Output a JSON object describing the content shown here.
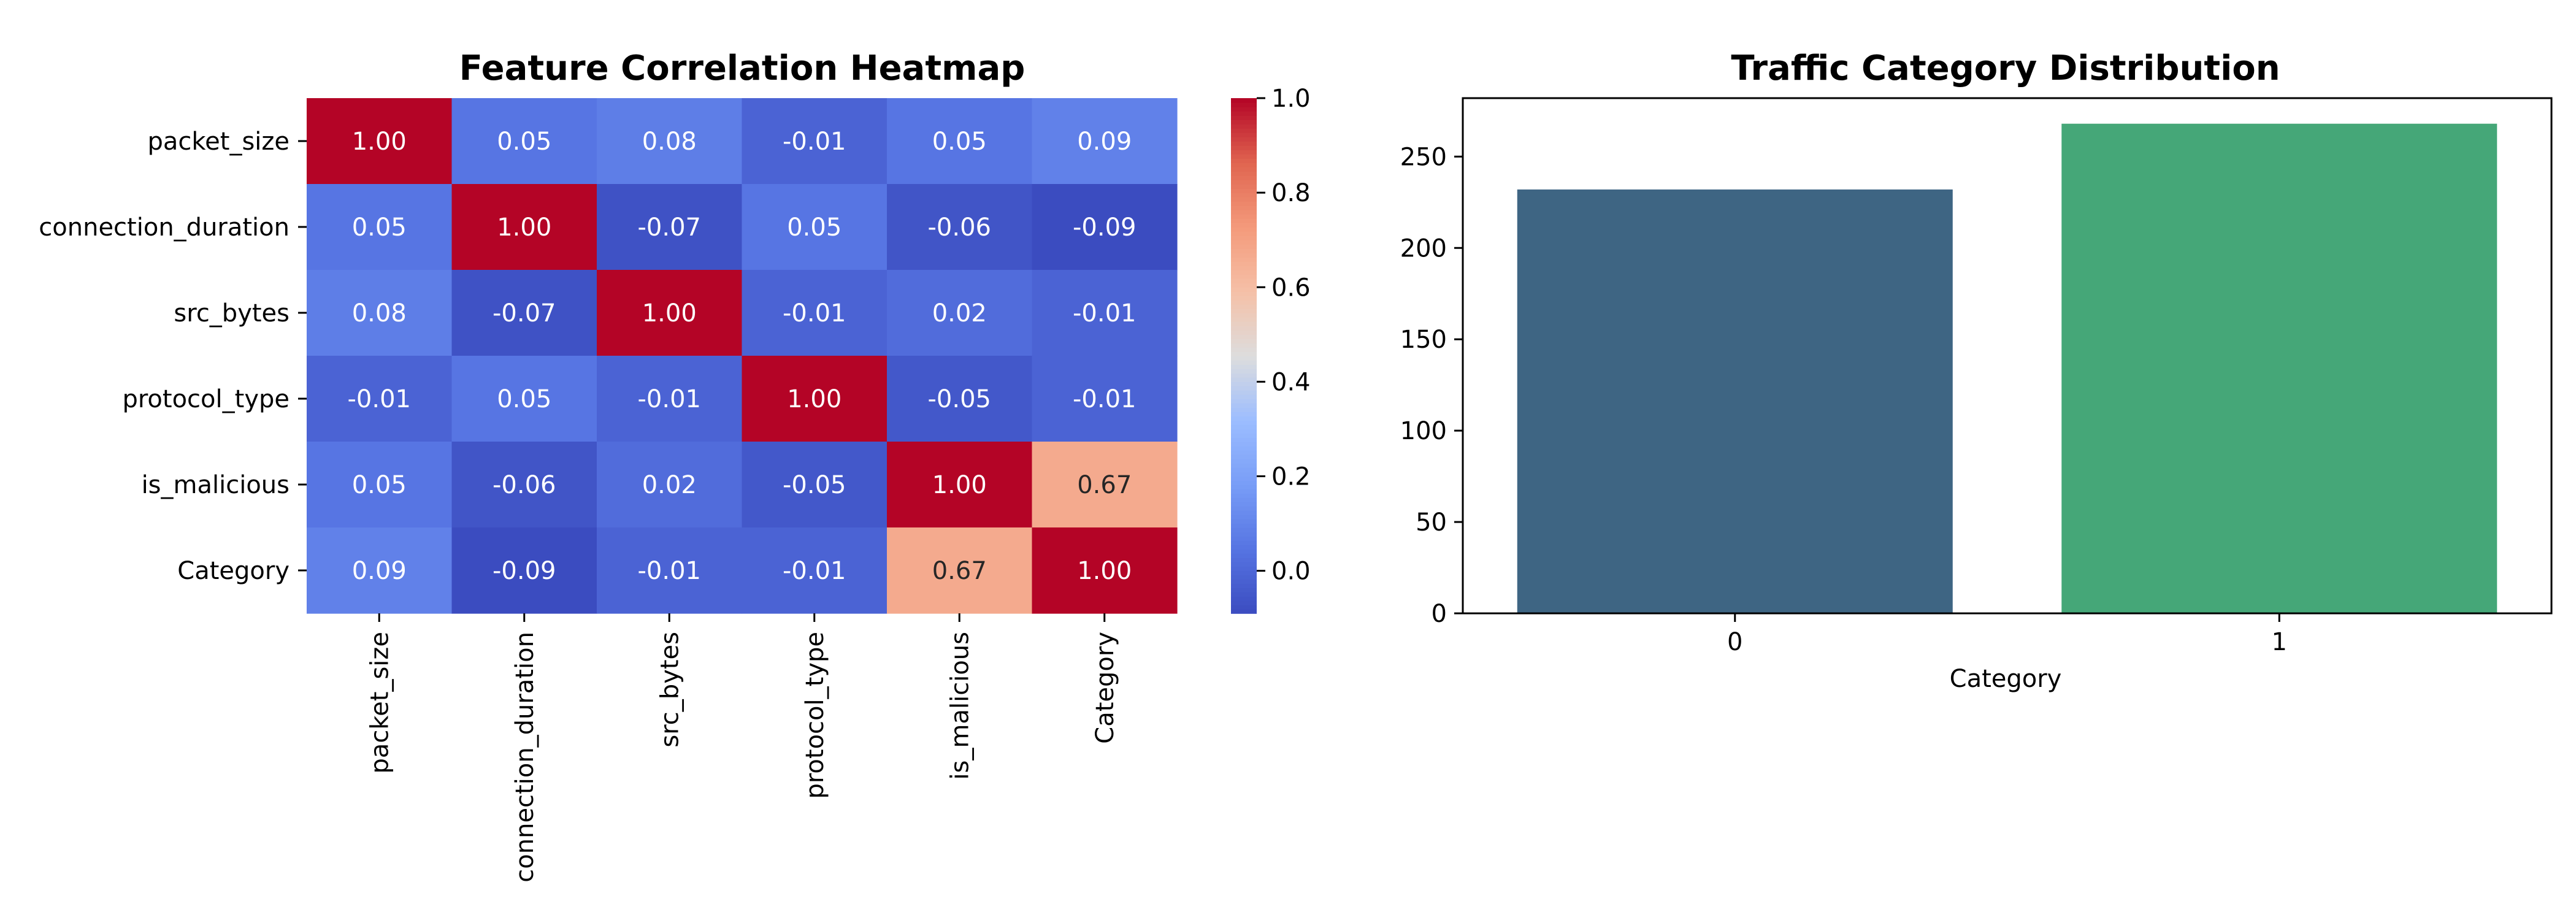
{
  "chart_data": [
    {
      "type": "heatmap",
      "title": "Feature Correlation Heatmap",
      "rows": [
        "packet_size",
        "connection_duration",
        "src_bytes",
        "protocol_type",
        "is_malicious",
        "Category"
      ],
      "columns": [
        "packet_size",
        "connection_duration",
        "src_bytes",
        "protocol_type",
        "is_malicious",
        "Category"
      ],
      "values": [
        [
          1.0,
          0.05,
          0.08,
          -0.01,
          0.05,
          0.09
        ],
        [
          0.05,
          1.0,
          -0.07,
          0.05,
          -0.06,
          -0.09
        ],
        [
          0.08,
          -0.07,
          1.0,
          -0.01,
          0.02,
          -0.01
        ],
        [
          -0.01,
          0.05,
          -0.01,
          1.0,
          -0.05,
          -0.01
        ],
        [
          0.05,
          -0.06,
          0.02,
          -0.05,
          1.0,
          0.67
        ],
        [
          0.09,
          -0.09,
          -0.01,
          -0.01,
          0.67,
          1.0
        ]
      ],
      "value_format": "0.00",
      "colormap": "coolwarm",
      "color_range": [
        -0.09,
        1.0
      ],
      "colorbar": {
        "ticks": [
          0.0,
          0.2,
          0.4,
          0.6,
          0.8,
          1.0
        ],
        "tick_labels": [
          "0.0",
          "0.2",
          "0.4",
          "0.6",
          "0.8",
          "1.0"
        ],
        "placement": "right"
      },
      "annotation_colors": {
        "dark_text": "#262626",
        "light_text": "#ffffff"
      }
    },
    {
      "type": "bar",
      "title": "Traffic Category Distribution",
      "categories": [
        "0",
        "1"
      ],
      "values": [
        232,
        268
      ],
      "xlabel": "Category",
      "ylabel": "",
      "ylim": [
        0,
        282
      ],
      "yticks": [
        0,
        50,
        100,
        150,
        200,
        250
      ],
      "colors": [
        "#3e6583",
        "#45a778"
      ],
      "grid": false
    }
  ]
}
